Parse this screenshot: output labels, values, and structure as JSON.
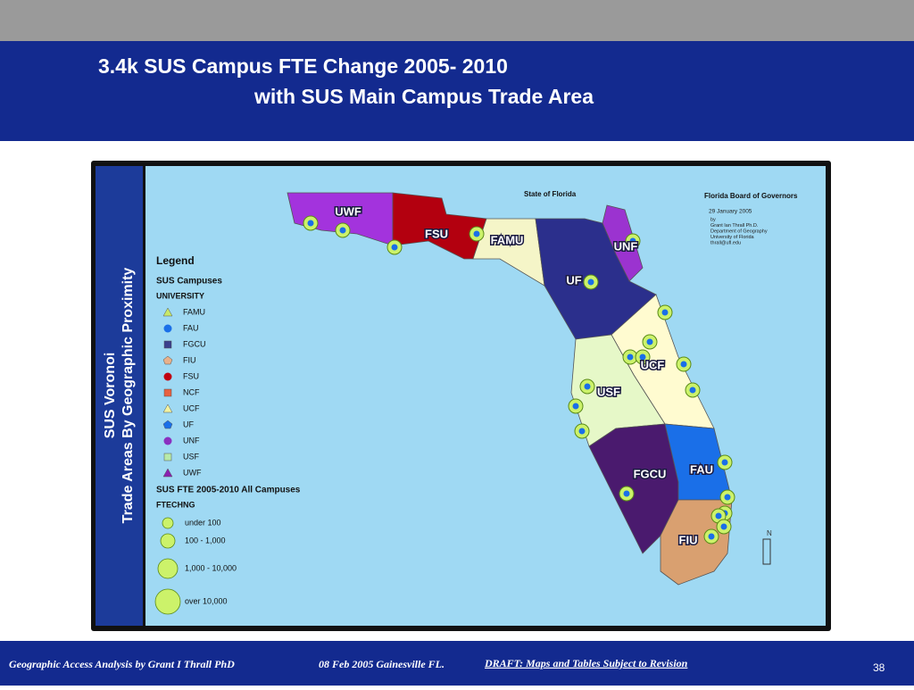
{
  "header": {
    "title_line1": "3.4k SUS Campus FTE Change 2005- 2010",
    "title_line2": "with SUS Main Campus Trade Area"
  },
  "sidebar": {
    "line1": "SUS Voronoi",
    "line2": "Trade Areas By Geographic Proximity"
  },
  "map": {
    "state_label": "State of Florida",
    "board": "Florida Board of Governors",
    "date": "29 January 2005",
    "credits": [
      "by",
      "Grant Ian Thrall Ph.D.",
      "Department of Geography",
      "University of Florida",
      "thrall@ufl.edu"
    ],
    "region_labels": [
      "UWF",
      "FSU",
      "FAMU",
      "UNF",
      "UF",
      "UCF",
      "USF",
      "FGCU",
      "FAU",
      "FIU"
    ],
    "north": "N"
  },
  "legend": {
    "title": "Legend",
    "campuses_title": "SUS Campuses",
    "university_label": "UNIVERSITY",
    "items": [
      "FAMU",
      "FAU",
      "FGCU",
      "FIU",
      "FSU",
      "NCF",
      "UCF",
      "UF",
      "UNF",
      "USF",
      "UWF"
    ],
    "fte_title": "SUS FTE 2005-2010 All Campuses",
    "fte_field": "FTECHNG",
    "sizes": [
      "under 100",
      "100 - 1,000",
      "1,000 - 10,000",
      "over 10,000"
    ]
  },
  "footer": {
    "author": "Geographic Access Analysis by Grant I Thrall PhD",
    "date": "08 Feb 2005  Gainesville FL.",
    "draft": "DRAFT:  Maps and Tables Subject to Revision",
    "page": "38"
  }
}
